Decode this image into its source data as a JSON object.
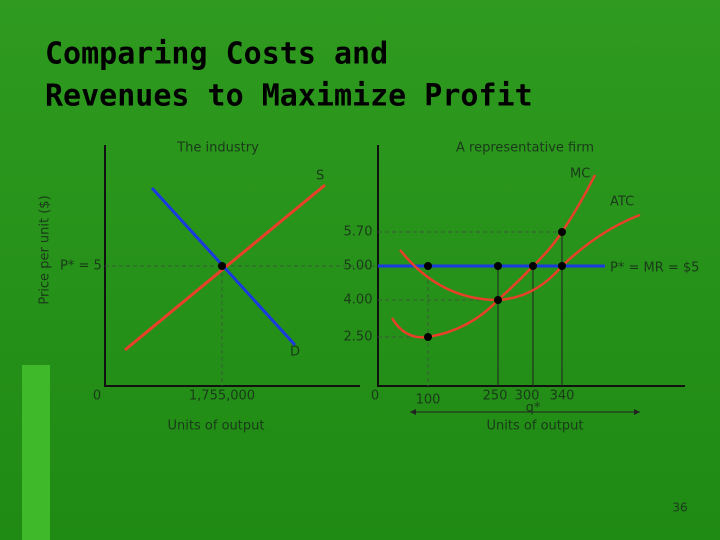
{
  "title_lines": [
    "Comparing Costs and",
    "Revenues to Maximize Profit"
  ],
  "y_axis_label": "Price per unit ($)",
  "industry": {
    "title": "The industry",
    "price_label": "P* = 5",
    "supply_label": "S",
    "demand_label": "D",
    "origin": "0",
    "quantity": "1,755,000",
    "x_axis_label": "Units of output"
  },
  "firm": {
    "title": "A representative firm",
    "mc_label": "MC",
    "atc_label": "ATC",
    "mr_label": "P* = MR = $5",
    "price_ticks": [
      "5.70",
      "5.00",
      "4.00",
      "2.50"
    ],
    "origin": "0",
    "quantity_ticks": [
      "100",
      "250",
      "300",
      "340"
    ],
    "q_star": "q*",
    "x_axis_label": "Units of output"
  },
  "slide_number": "36"
}
